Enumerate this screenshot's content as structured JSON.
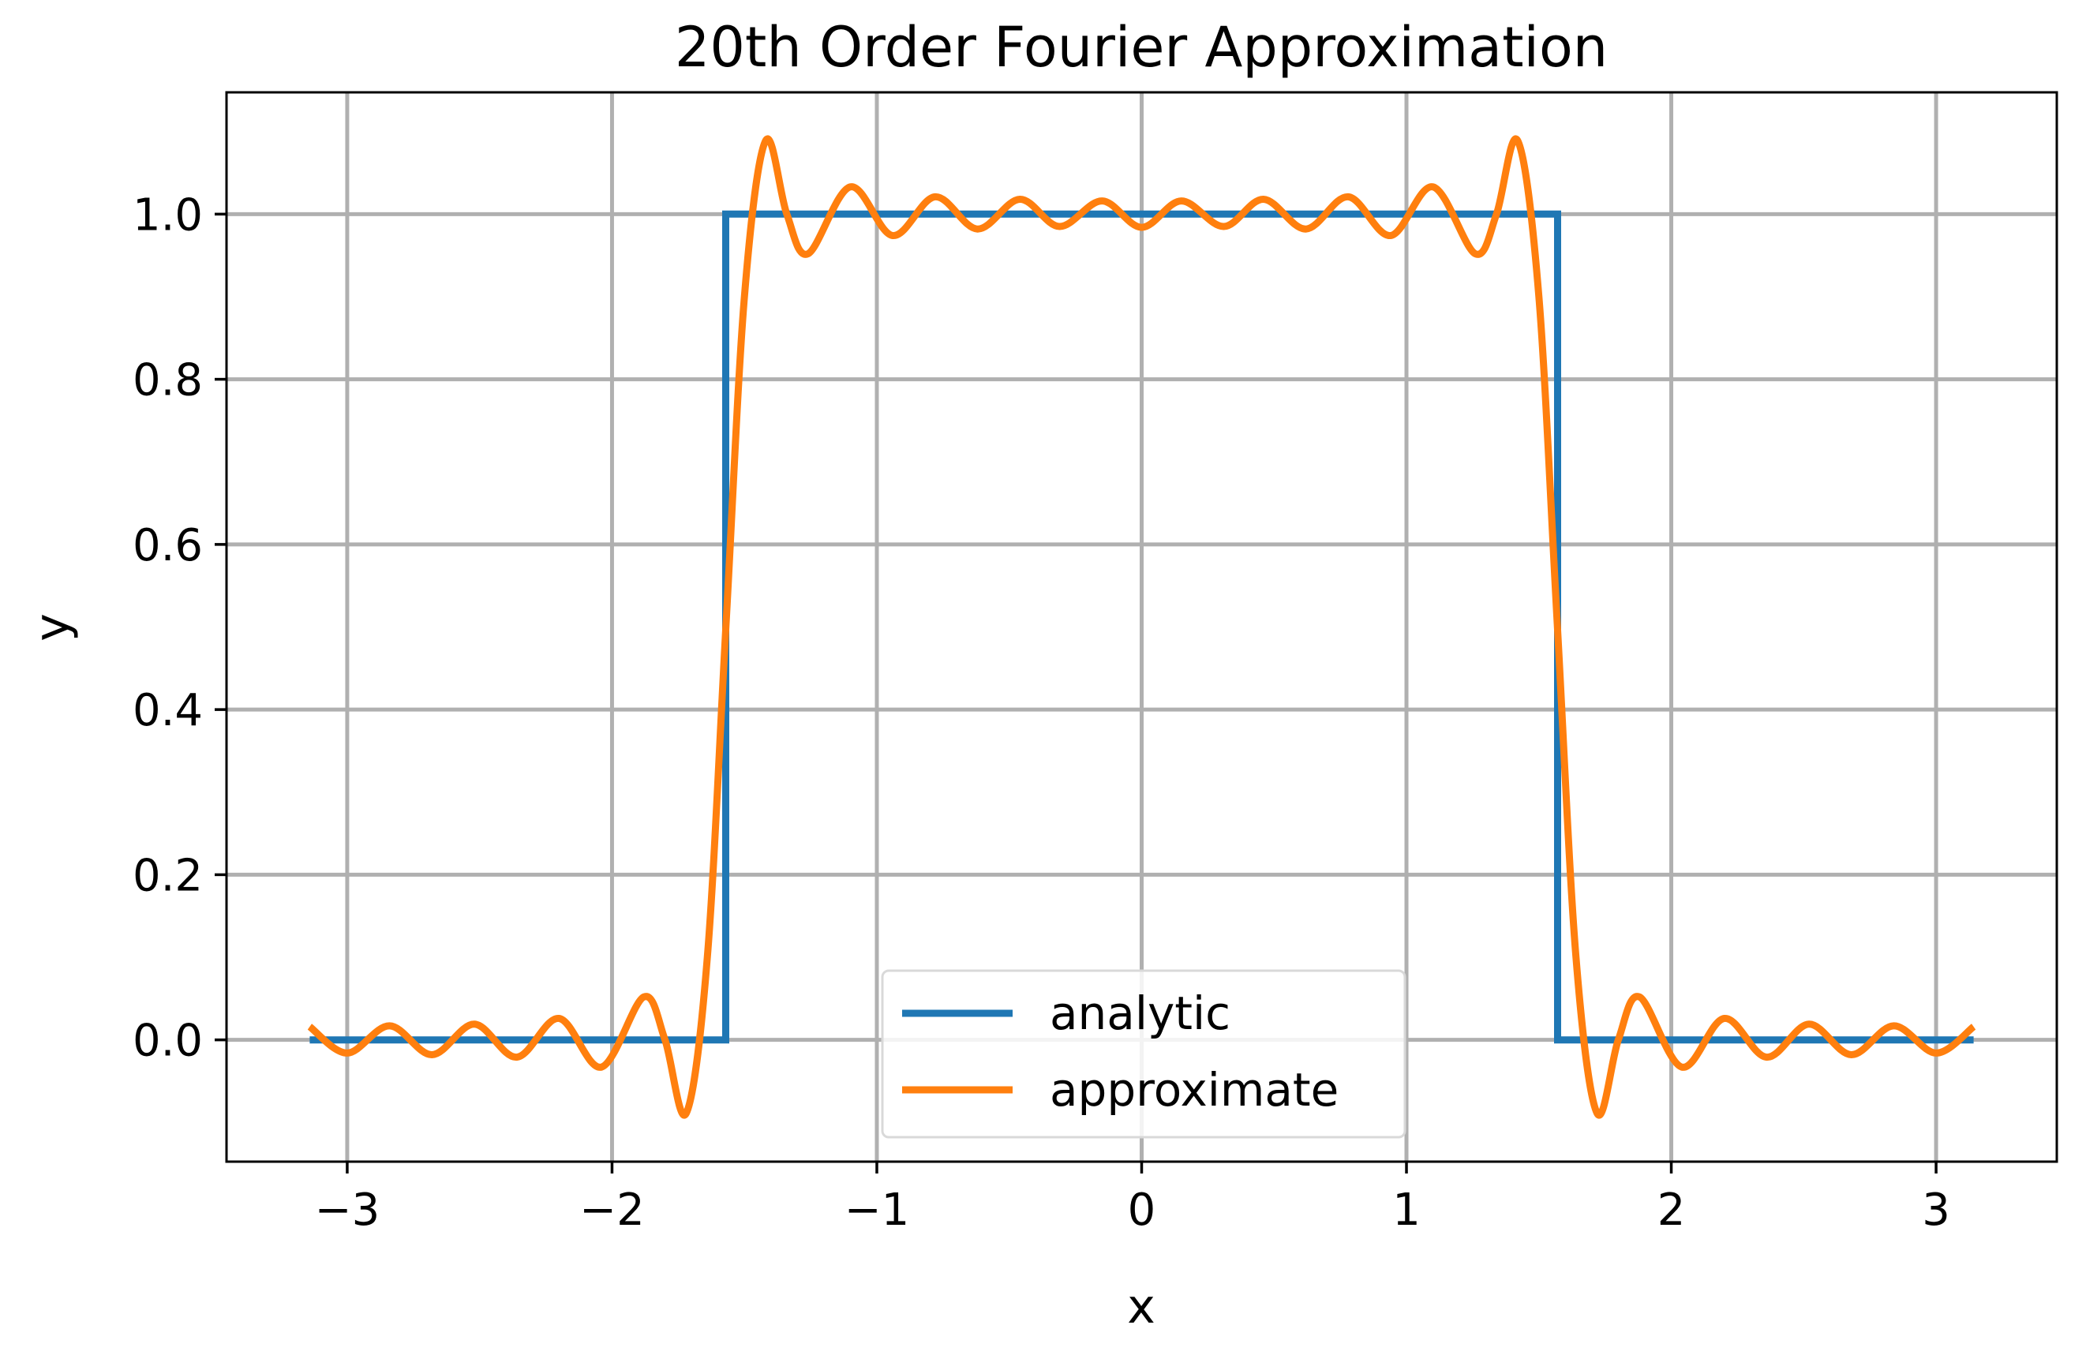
{
  "chart_data": {
    "type": "line",
    "title": "20th Order Fourier Approximation",
    "xlabel": "x",
    "ylabel": "y",
    "xlim": [
      -3.4558,
      3.4558
    ],
    "ylim": [
      -0.1475,
      1.1475
    ],
    "x_ticks": [
      -3,
      -2,
      -1,
      0,
      1,
      2,
      3
    ],
    "x_tick_labels": [
      "−3",
      "−2",
      "−1",
      "0",
      "1",
      "2",
      "3"
    ],
    "y_ticks": [
      0.0,
      0.2,
      0.4,
      0.6,
      0.8,
      1.0
    ],
    "y_tick_labels": [
      "0.0",
      "0.2",
      "0.4",
      "0.6",
      "0.8",
      "1.0"
    ],
    "grid": true,
    "legend_position": "lower-center",
    "series": [
      {
        "name": "analytic",
        "color": "#1f77b4",
        "x": [
          -3.1416,
          -1.5708,
          -1.5708,
          1.5708,
          1.5708,
          3.1416
        ],
        "y": [
          0.0,
          0.0,
          1.0,
          1.0,
          0.0,
          0.0
        ]
      },
      {
        "name": "approximate",
        "color": "#ff7f0e",
        "x": [
          -3.1416,
          -3.0,
          -2.84,
          -2.68,
          -2.52,
          -2.36,
          -2.2,
          -2.04,
          -1.88,
          -1.8,
          -1.72,
          -1.64,
          -1.57,
          -1.5,
          -1.42,
          -1.34,
          -1.26,
          -1.1,
          -0.94,
          -0.78,
          -0.62,
          -0.46,
          -0.31,
          -0.15,
          0.0,
          0.15,
          0.31,
          0.46,
          0.62,
          0.78,
          0.94,
          1.1,
          1.26,
          1.34,
          1.42,
          1.5,
          1.57,
          1.64,
          1.72,
          1.8,
          1.88,
          2.04,
          2.2,
          2.36,
          2.52,
          2.68,
          2.84,
          3.0,
          3.1416
        ],
        "y": [
          0.016,
          -0.016,
          0.017,
          -0.018,
          0.019,
          -0.021,
          0.026,
          -0.033,
          0.052,
          0.0,
          -0.089,
          0.1,
          0.5,
          0.9,
          1.089,
          1.0,
          0.952,
          1.033,
          0.974,
          1.021,
          0.982,
          1.018,
          0.985,
          1.016,
          0.984,
          1.016,
          0.985,
          1.018,
          0.982,
          1.021,
          0.974,
          1.033,
          0.952,
          1.0,
          1.089,
          0.9,
          0.5,
          0.1,
          -0.089,
          0.0,
          0.052,
          -0.033,
          0.026,
          -0.021,
          0.019,
          -0.018,
          0.017,
          -0.016,
          0.016
        ]
      }
    ]
  }
}
